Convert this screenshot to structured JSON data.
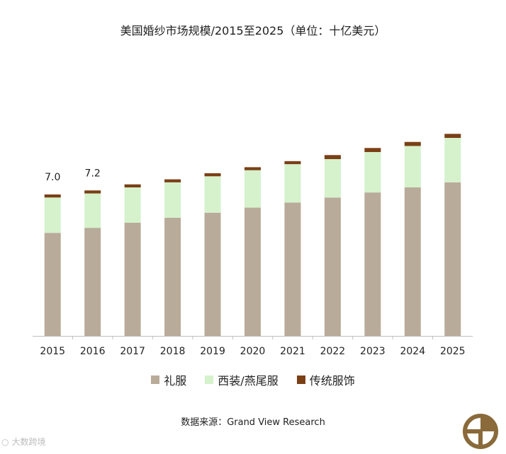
{
  "chart_data": {
    "type": "bar",
    "stacked": true,
    "title": "美国婚纱市场规模/2015至2025（单位：十亿美元）",
    "categories": [
      "2015",
      "2016",
      "2017",
      "2018",
      "2019",
      "2020",
      "2021",
      "2022",
      "2023",
      "2024",
      "2025"
    ],
    "series": [
      {
        "name": "礼服",
        "color": "#b9ab99",
        "values": [
          5.1,
          5.35,
          5.6,
          5.85,
          6.1,
          6.35,
          6.6,
          6.85,
          7.1,
          7.35,
          7.6
        ]
      },
      {
        "name": "西装/燕尾服",
        "color": "#d5f2cc",
        "values": [
          1.75,
          1.7,
          1.75,
          1.75,
          1.8,
          1.85,
          1.9,
          1.9,
          2.0,
          2.05,
          2.2
        ]
      },
      {
        "name": "传统服饰",
        "color": "#7b3f16",
        "values": [
          0.15,
          0.15,
          0.15,
          0.15,
          0.15,
          0.15,
          0.15,
          0.2,
          0.2,
          0.2,
          0.2
        ]
      }
    ],
    "data_labels": [
      {
        "category": "2015",
        "text": "7.0"
      },
      {
        "category": "2016",
        "text": "7.2"
      }
    ],
    "ylim": [
      0,
      14
    ],
    "xlabel": "",
    "ylabel": "",
    "grid": false,
    "legend_position": "bottom"
  },
  "source_text": "数据来源：Grand View Research",
  "watermark_text": "大数跨境"
}
